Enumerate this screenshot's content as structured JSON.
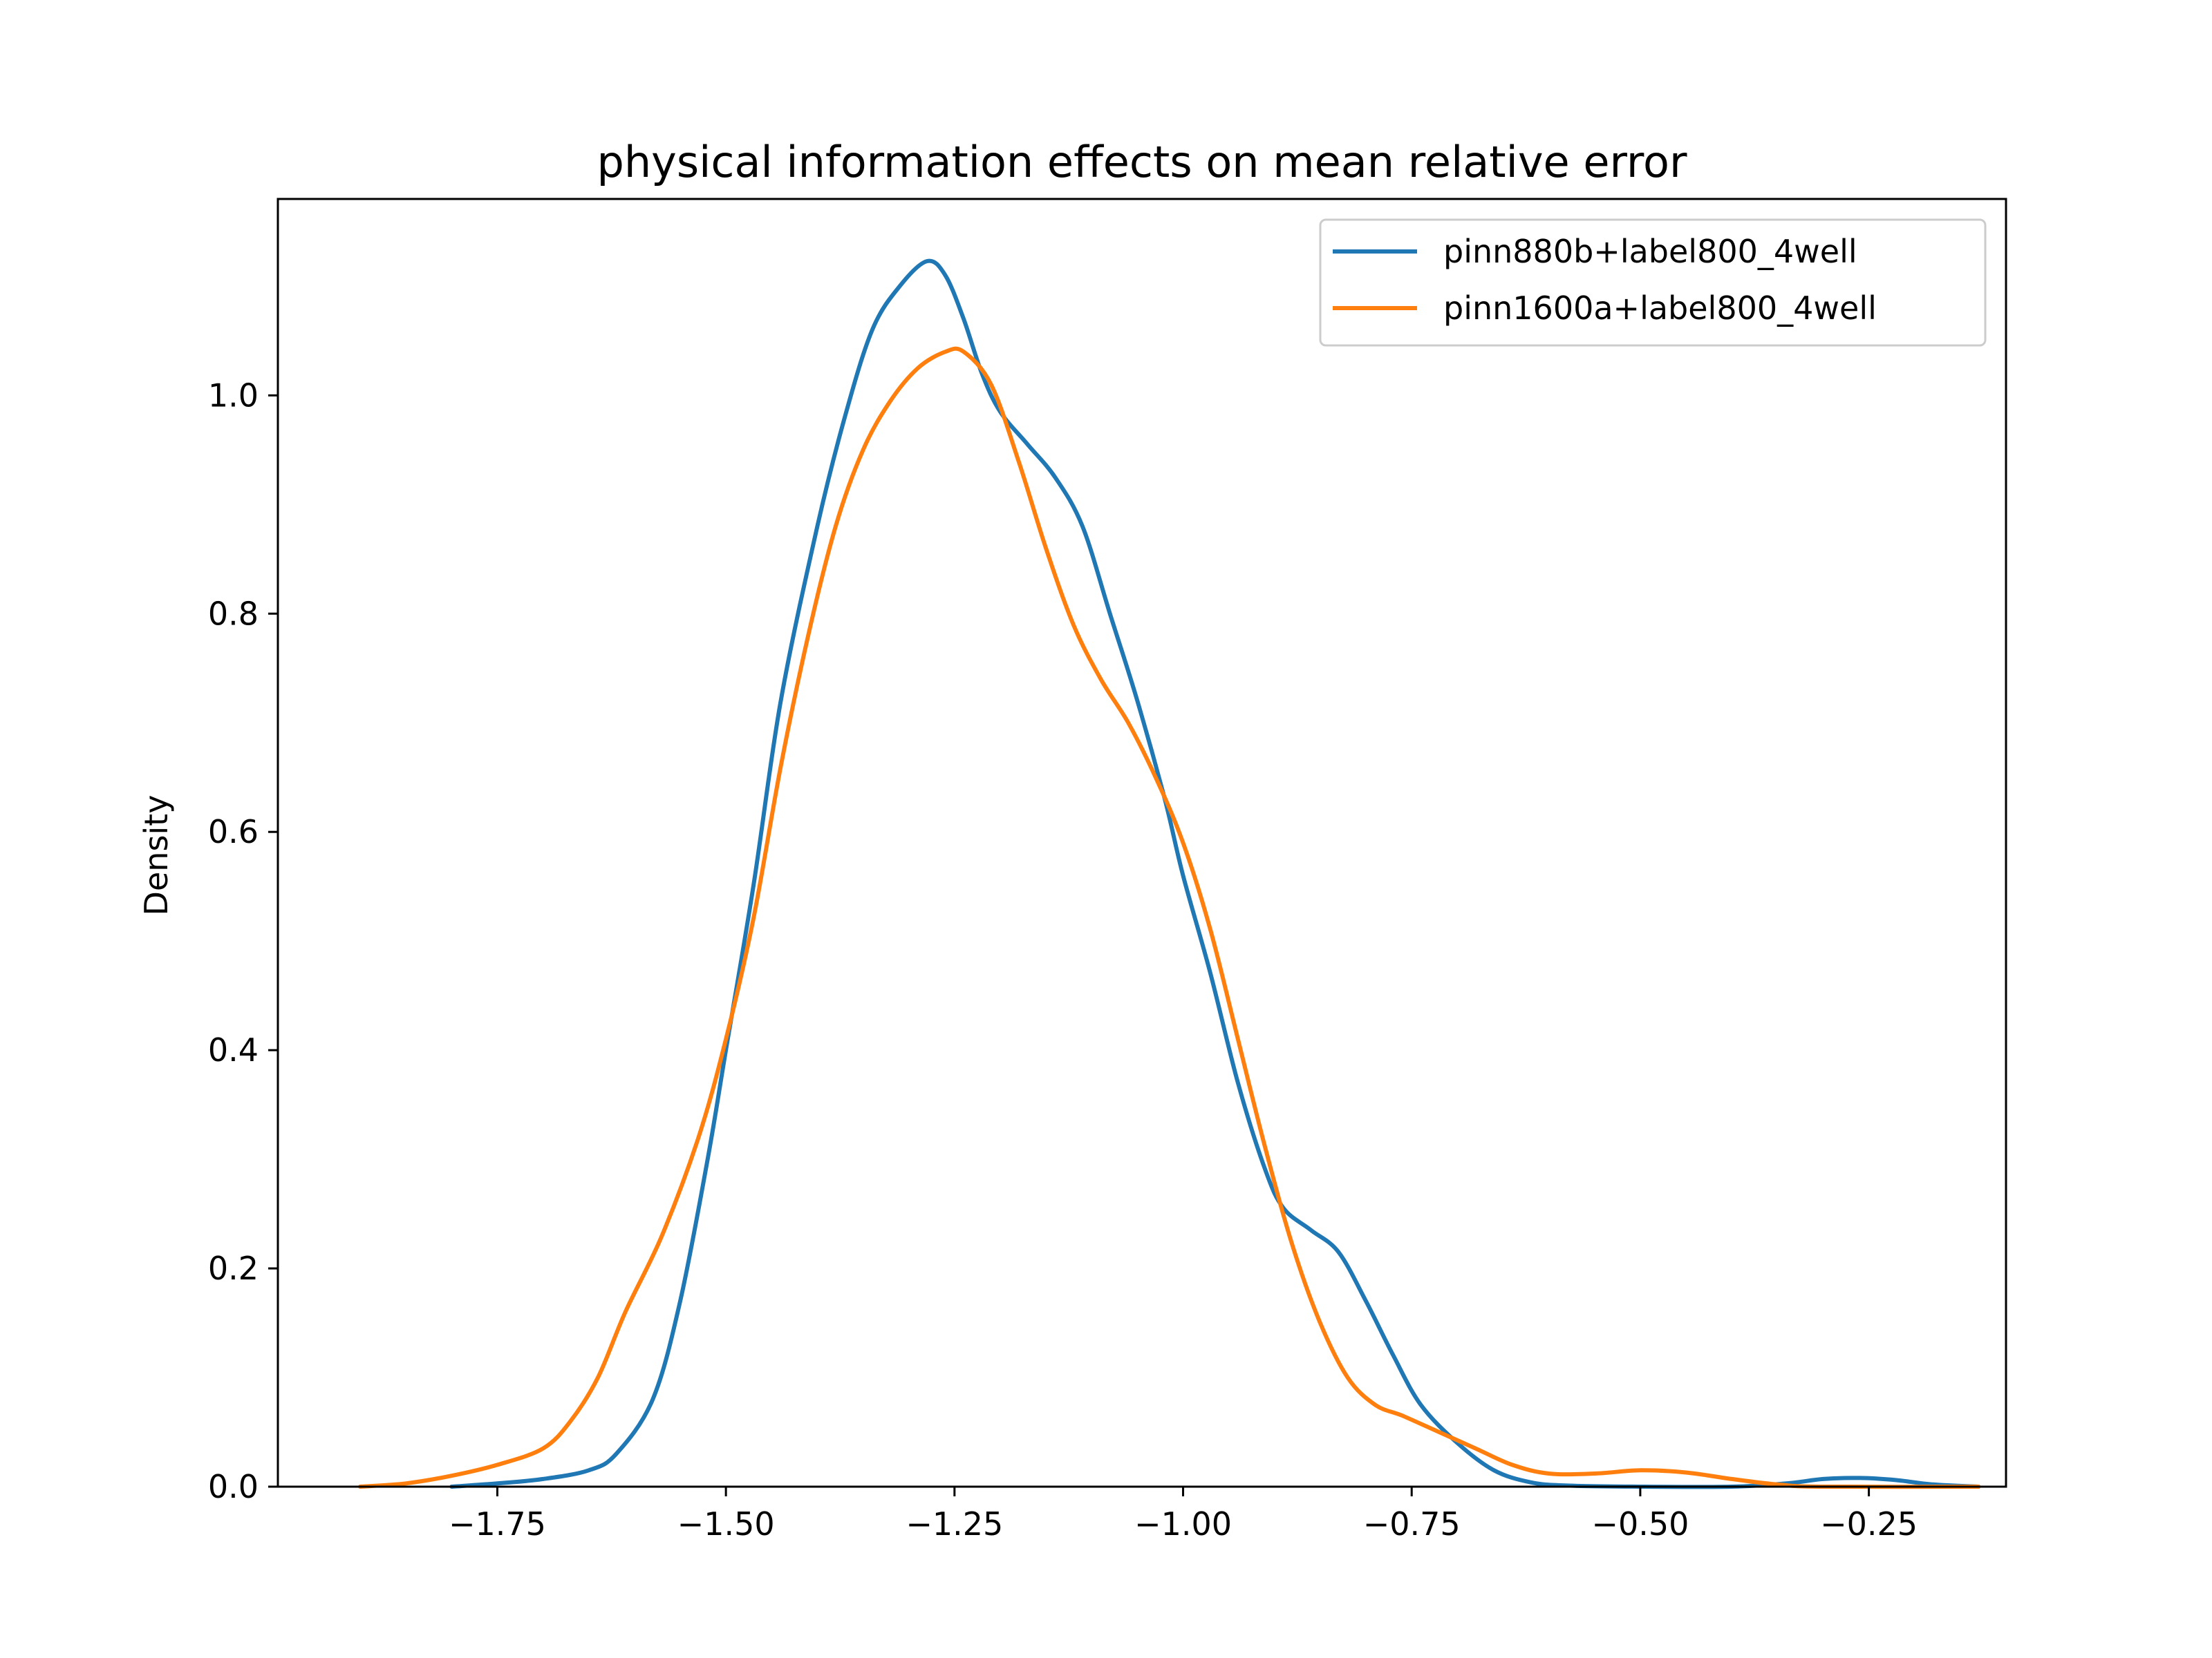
{
  "chart_data": {
    "type": "line",
    "title": "physical information effects on mean relative error",
    "xlabel": "",
    "ylabel": "Density",
    "xlim": [
      -1.99,
      -0.1
    ],
    "ylim": [
      0.0,
      1.18
    ],
    "xticks": [
      -1.75,
      -1.5,
      -1.25,
      -1.0,
      -0.75,
      -0.5,
      -0.25
    ],
    "xtick_labels": [
      "−1.75",
      "−1.50",
      "−1.25",
      "−1.00",
      "−0.75",
      "−0.50",
      "−0.25"
    ],
    "yticks": [
      0.0,
      0.2,
      0.4,
      0.6,
      0.8,
      1.0
    ],
    "ytick_labels": [
      "0.0",
      "0.2",
      "0.4",
      "0.6",
      "0.8",
      "1.0"
    ],
    "grid": false,
    "legend_position": "top-right",
    "series": [
      {
        "name": "pinn880b+label800_4well",
        "color": "#1f77b4",
        "points": [
          [
            -1.8,
            0.0
          ],
          [
            -1.75,
            0.003
          ],
          [
            -1.7,
            0.007
          ],
          [
            -1.65,
            0.015
          ],
          [
            -1.62,
            0.03
          ],
          [
            -1.58,
            0.08
          ],
          [
            -1.55,
            0.17
          ],
          [
            -1.52,
            0.3
          ],
          [
            -1.5,
            0.4
          ],
          [
            -1.47,
            0.55
          ],
          [
            -1.44,
            0.72
          ],
          [
            -1.4,
            0.88
          ],
          [
            -1.37,
            0.98
          ],
          [
            -1.34,
            1.06
          ],
          [
            -1.31,
            1.1
          ],
          [
            -1.28,
            1.123
          ],
          [
            -1.26,
            1.11
          ],
          [
            -1.24,
            1.07
          ],
          [
            -1.22,
            1.02
          ],
          [
            -1.2,
            0.985
          ],
          [
            -1.17,
            0.955
          ],
          [
            -1.14,
            0.925
          ],
          [
            -1.11,
            0.88
          ],
          [
            -1.08,
            0.8
          ],
          [
            -1.05,
            0.72
          ],
          [
            -1.02,
            0.63
          ],
          [
            -1.0,
            0.56
          ],
          [
            -0.97,
            0.47
          ],
          [
            -0.94,
            0.37
          ],
          [
            -0.91,
            0.29
          ],
          [
            -0.89,
            0.255
          ],
          [
            -0.86,
            0.235
          ],
          [
            -0.83,
            0.215
          ],
          [
            -0.8,
            0.17
          ],
          [
            -0.77,
            0.12
          ],
          [
            -0.74,
            0.075
          ],
          [
            -0.7,
            0.04
          ],
          [
            -0.66,
            0.015
          ],
          [
            -0.62,
            0.004
          ],
          [
            -0.58,
            0.001
          ],
          [
            -0.5,
            0.0
          ],
          [
            -0.4,
            0.0
          ],
          [
            -0.34,
            0.003
          ],
          [
            -0.3,
            0.007
          ],
          [
            -0.26,
            0.008
          ],
          [
            -0.22,
            0.006
          ],
          [
            -0.18,
            0.002
          ],
          [
            -0.13,
            0.0
          ]
        ]
      },
      {
        "name": "pinn1600a+label800_4well",
        "color": "#ff7f0e",
        "points": [
          [
            -1.9,
            0.0
          ],
          [
            -1.85,
            0.003
          ],
          [
            -1.8,
            0.01
          ],
          [
            -1.75,
            0.02
          ],
          [
            -1.7,
            0.035
          ],
          [
            -1.67,
            0.06
          ],
          [
            -1.64,
            0.1
          ],
          [
            -1.61,
            0.16
          ],
          [
            -1.57,
            0.23
          ],
          [
            -1.53,
            0.32
          ],
          [
            -1.5,
            0.41
          ],
          [
            -1.47,
            0.52
          ],
          [
            -1.44,
            0.66
          ],
          [
            -1.41,
            0.78
          ],
          [
            -1.38,
            0.88
          ],
          [
            -1.35,
            0.95
          ],
          [
            -1.32,
            0.995
          ],
          [
            -1.29,
            1.025
          ],
          [
            -1.26,
            1.04
          ],
          [
            -1.24,
            1.04
          ],
          [
            -1.21,
            1.01
          ],
          [
            -1.18,
            0.94
          ],
          [
            -1.15,
            0.86
          ],
          [
            -1.12,
            0.79
          ],
          [
            -1.09,
            0.74
          ],
          [
            -1.06,
            0.7
          ],
          [
            -1.03,
            0.65
          ],
          [
            -1.0,
            0.59
          ],
          [
            -0.97,
            0.51
          ],
          [
            -0.94,
            0.41
          ],
          [
            -0.91,
            0.31
          ],
          [
            -0.88,
            0.22
          ],
          [
            -0.85,
            0.15
          ],
          [
            -0.82,
            0.1
          ],
          [
            -0.79,
            0.075
          ],
          [
            -0.76,
            0.065
          ],
          [
            -0.72,
            0.05
          ],
          [
            -0.68,
            0.035
          ],
          [
            -0.64,
            0.02
          ],
          [
            -0.6,
            0.012
          ],
          [
            -0.55,
            0.012
          ],
          [
            -0.5,
            0.015
          ],
          [
            -0.45,
            0.013
          ],
          [
            -0.4,
            0.007
          ],
          [
            -0.35,
            0.002
          ],
          [
            -0.3,
            0.0
          ],
          [
            -0.13,
            0.0
          ]
        ]
      }
    ]
  }
}
